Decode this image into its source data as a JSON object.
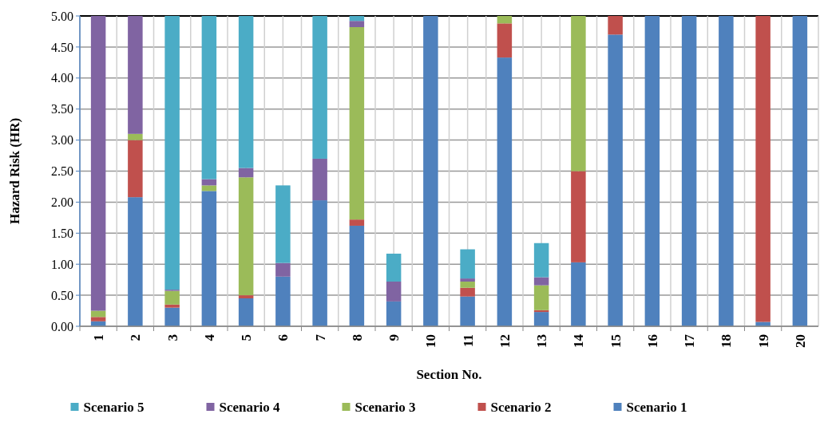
{
  "chart_data": {
    "type": "bar",
    "stacked": true,
    "xlabel": "Section No.",
    "ylabel": "Hazard Risk (HR)",
    "categories": [
      "1",
      "2",
      "3",
      "4",
      "5",
      "6",
      "7",
      "8",
      "9",
      "10",
      "11",
      "12",
      "13",
      "14",
      "15",
      "16",
      "17",
      "18",
      "19",
      "20"
    ],
    "series": [
      {
        "name": "Scenario 1",
        "color": "#4f81bd",
        "values": [
          0.08,
          2.08,
          0.3,
          2.18,
          0.45,
          0.8,
          2.03,
          1.62,
          0.4,
          5,
          0.48,
          4.33,
          0.23,
          1.03,
          4.7,
          5,
          5,
          5,
          0.07,
          5
        ]
      },
      {
        "name": "Scenario 2",
        "color": "#c0504d",
        "values": [
          0.07,
          0.92,
          0.05,
          0,
          0.05,
          0,
          0,
          0.1,
          0,
          0,
          0.14,
          0.55,
          0.03,
          1.47,
          0.3,
          0,
          0,
          0,
          4.93,
          0
        ]
      },
      {
        "name": "Scenario 3",
        "color": "#9bbb59",
        "values": [
          0.1,
          0.1,
          0.22,
          0.09,
          1.9,
          0,
          0,
          3.1,
          0,
          0,
          0.1,
          0.12,
          0.4,
          2.5,
          0,
          0,
          0,
          0,
          0,
          0
        ]
      },
      {
        "name": "Scenario 4",
        "color": "#8064a2",
        "values": [
          4.75,
          1.9,
          0.02,
          0.1,
          0.15,
          0.22,
          0.67,
          0.1,
          0.32,
          0,
          0.05,
          0,
          0.13,
          0,
          0,
          0,
          0,
          0,
          0,
          0
        ]
      },
      {
        "name": "Scenario 5",
        "color": "#4bacc6",
        "values": [
          0,
          0,
          4.41,
          2.63,
          2.45,
          1.25,
          2.3,
          0.08,
          0.45,
          0,
          0.47,
          0,
          0.55,
          0,
          0,
          0,
          0,
          0,
          0,
          0
        ]
      }
    ],
    "ylim": [
      0,
      5
    ],
    "yticks": [
      {
        "value": 0,
        "label": "0.00"
      },
      {
        "value": 0.5,
        "label": "0.50"
      },
      {
        "value": 1,
        "label": "1.00"
      },
      {
        "value": 1.5,
        "label": "1.50"
      },
      {
        "value": 2,
        "label": "2.00"
      },
      {
        "value": 2.5,
        "label": "2.50"
      },
      {
        "value": 3,
        "label": "3.00"
      },
      {
        "value": 3.5,
        "label": "3.50"
      },
      {
        "value": 4,
        "label": "4.00"
      },
      {
        "value": 4.5,
        "label": "4.50"
      },
      {
        "value": 5,
        "label": "5.00"
      }
    ],
    "grid": true,
    "legend": "bottom"
  }
}
